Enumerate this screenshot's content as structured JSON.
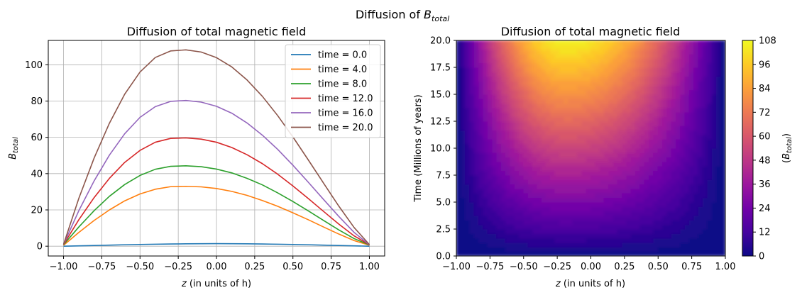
{
  "suptitle": {
    "text": "Diffusion of ",
    "math": "B",
    "sub": "total"
  },
  "chart_data": [
    {
      "type": "line",
      "title": "Diffusion of total magnetic field",
      "xlabel": {
        "math": "z",
        "text": " (in units of h)"
      },
      "ylabel": {
        "math": "B",
        "sub": "total"
      },
      "xlim": [
        -1.1,
        1.1
      ],
      "ylim": [
        -5.4,
        113.4
      ],
      "xticks": [
        -1.0,
        -0.75,
        -0.5,
        -0.25,
        0.0,
        0.25,
        0.5,
        0.75,
        1.0
      ],
      "xtick_labels": [
        "−1.00",
        "−0.75",
        "−0.50",
        "−0.25",
        "0.00",
        "0.25",
        "0.50",
        "0.75",
        "1.00"
      ],
      "yticks": [
        0,
        20,
        40,
        60,
        80,
        100
      ],
      "ytick_labels": [
        "0",
        "20",
        "40",
        "60",
        "80",
        "100"
      ],
      "grid": true,
      "legend_position": "top-right",
      "x": [
        -1.0,
        -0.9,
        -0.8,
        -0.7,
        -0.6,
        -0.5,
        -0.4,
        -0.3,
        -0.2,
        -0.1,
        0.0,
        0.1,
        0.2,
        0.3,
        0.4,
        0.5,
        0.6,
        0.7,
        0.8,
        0.9,
        1.0
      ],
      "series": [
        {
          "name": "time = 0.0",
          "color": "#1f77b4",
          "values": [
            0.0,
            0.2,
            0.4,
            0.6,
            0.8,
            0.95,
            1.1,
            1.2,
            1.3,
            1.35,
            1.4,
            1.35,
            1.3,
            1.2,
            1.1,
            0.95,
            0.8,
            0.6,
            0.4,
            0.2,
            0.0
          ]
        },
        {
          "name": "time = 4.0",
          "color": "#ff7f0e",
          "values": [
            0.5,
            7.6,
            14.2,
            20.0,
            25.0,
            28.8,
            31.4,
            32.8,
            33.0,
            32.7,
            31.8,
            30.2,
            28.0,
            25.2,
            22.0,
            18.4,
            14.6,
            10.6,
            6.7,
            3.1,
            0.5
          ]
        },
        {
          "name": "time = 8.0",
          "color": "#2ca02c",
          "values": [
            0.8,
            10.6,
            19.6,
            27.5,
            34.0,
            39.0,
            42.4,
            44.0,
            44.3,
            43.8,
            42.5,
            40.4,
            37.4,
            33.8,
            29.4,
            24.6,
            19.5,
            14.2,
            9.0,
            4.2,
            0.7
          ]
        },
        {
          "name": "time = 12.0",
          "color": "#d62728",
          "values": [
            0.9,
            14.6,
            26.8,
            37.4,
            46.2,
            52.8,
            57.3,
            59.4,
            59.7,
            59.0,
            57.3,
            54.4,
            50.4,
            45.5,
            39.7,
            33.2,
            26.3,
            19.2,
            12.2,
            5.7,
            0.8
          ]
        },
        {
          "name": "time = 16.0",
          "color": "#9467bd",
          "values": [
            1.0,
            19.6,
            36.0,
            50.2,
            62.0,
            71.0,
            76.9,
            79.8,
            80.3,
            79.4,
            77.1,
            73.3,
            67.9,
            61.2,
            53.4,
            44.6,
            35.3,
            25.8,
            16.4,
            7.6,
            0.8
          ]
        },
        {
          "name": "time = 20.0",
          "color": "#8c564b",
          "values": [
            1.0,
            26.4,
            48.6,
            67.8,
            83.8,
            96.0,
            104.0,
            107.6,
            108.2,
            107.0,
            103.9,
            98.8,
            91.6,
            82.6,
            72.0,
            60.2,
            47.6,
            34.8,
            22.1,
            10.3,
            0.9
          ]
        }
      ]
    },
    {
      "type": "heatmap",
      "title": "Diffusion of total magnetic field",
      "xlabel": {
        "math": "z",
        "text": " (in units of h)"
      },
      "ylabel": "Time (Millions of years)",
      "xlim": [
        -1.0,
        1.0
      ],
      "ylim": [
        0.0,
        20.0
      ],
      "xtick_labels": [
        "−1.00",
        "−0.75",
        "−0.50",
        "−0.25",
        "0.00",
        "0.25",
        "0.50",
        "0.75",
        "1.00"
      ],
      "ytick_labels": [
        "0.0",
        "2.5",
        "5.0",
        "7.5",
        "10.0",
        "12.5",
        "15.0",
        "17.5",
        "20.0"
      ],
      "colormap": "plasma",
      "colorbar": {
        "label": "(B_total)",
        "label_math": {
          "math": "B",
          "sub": "total"
        },
        "range": [
          0,
          108
        ],
        "ticks": [
          0,
          12,
          24,
          36,
          48,
          60,
          72,
          84,
          96,
          108
        ]
      },
      "peak": {
        "z": -0.18,
        "time": 20.0,
        "value": 108
      }
    }
  ]
}
